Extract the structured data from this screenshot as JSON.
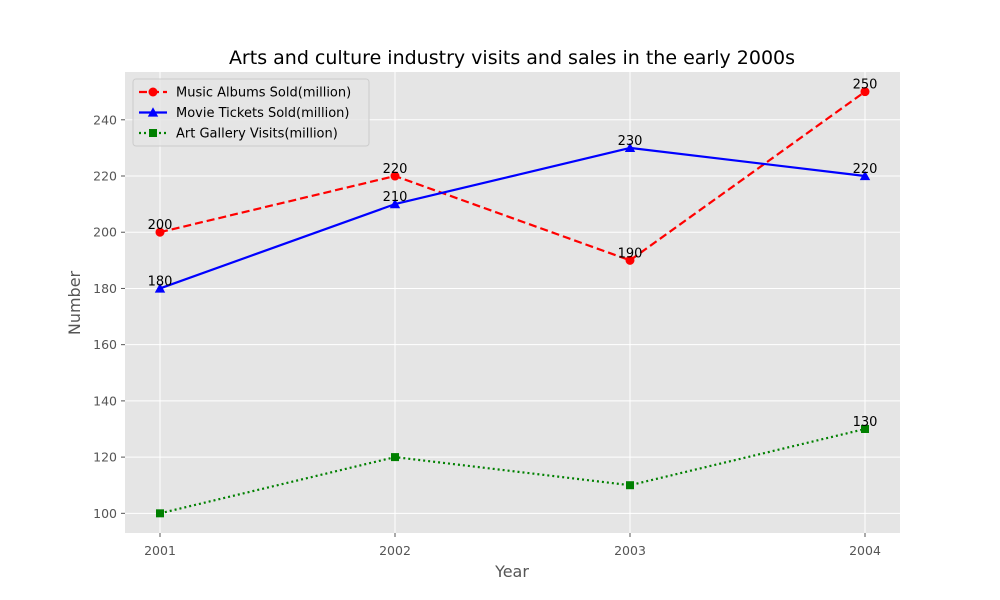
{
  "chart_data": {
    "type": "line",
    "title": "Arts and culture industry visits and sales in the early 2000s",
    "xlabel": "Year",
    "ylabel": "Number",
    "x": [
      "2001",
      "2002",
      "2003",
      "2004"
    ],
    "ylim": [
      93,
      257
    ],
    "yticks": [
      100,
      120,
      140,
      160,
      180,
      200,
      220,
      240
    ],
    "grid": true,
    "legend_position": "top-left",
    "background": "#e5e5e5",
    "series": [
      {
        "name": "Music Albums Sold(million)",
        "values": [
          200,
          220,
          190,
          250
        ],
        "color": "#ff0000",
        "dash": "dashed",
        "marker": "circle",
        "labels": [
          "200",
          "220",
          "190",
          "250"
        ]
      },
      {
        "name": "Movie Tickets Sold(million)",
        "values": [
          180,
          210,
          230,
          220
        ],
        "color": "#0000ff",
        "dash": "solid",
        "marker": "triangle",
        "labels": [
          "180",
          "210",
          "230",
          "220"
        ]
      },
      {
        "name": "Art Gallery Visits(million)",
        "values": [
          100,
          120,
          110,
          130
        ],
        "color": "#008000",
        "dash": "dotted",
        "marker": "square",
        "labels": [
          "",
          "",
          "",
          "130"
        ]
      }
    ]
  }
}
